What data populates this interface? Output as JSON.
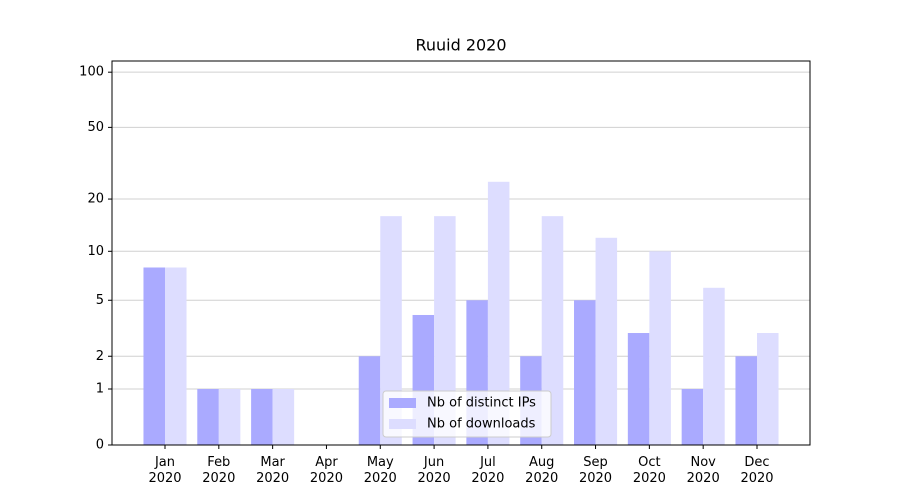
{
  "chart_data": {
    "type": "bar",
    "title": "Ruuid 2020",
    "categories": [
      "Jan\n2020",
      "Feb\n2020",
      "Mar\n2020",
      "Apr\n2020",
      "May\n2020",
      "Jun\n2020",
      "Jul\n2020",
      "Aug\n2020",
      "Sep\n2020",
      "Oct\n2020",
      "Nov\n2020",
      "Dec\n2020"
    ],
    "series": [
      {
        "name": "Nb of distinct IPs",
        "color": "#aaaaff",
        "values": [
          8,
          1,
          1,
          0,
          2,
          4,
          5,
          2,
          5,
          3,
          1,
          2
        ]
      },
      {
        "name": "Nb of downloads",
        "color": "#ddddff",
        "values": [
          8,
          1,
          1,
          0,
          16,
          16,
          25,
          16,
          12,
          10,
          6,
          3
        ]
      }
    ],
    "yscale": "log1p",
    "ylim": [
      0,
      115
    ],
    "yticks": [
      0,
      1,
      2,
      5,
      10,
      20,
      50,
      100
    ],
    "grid": true,
    "legend": "lower center"
  }
}
